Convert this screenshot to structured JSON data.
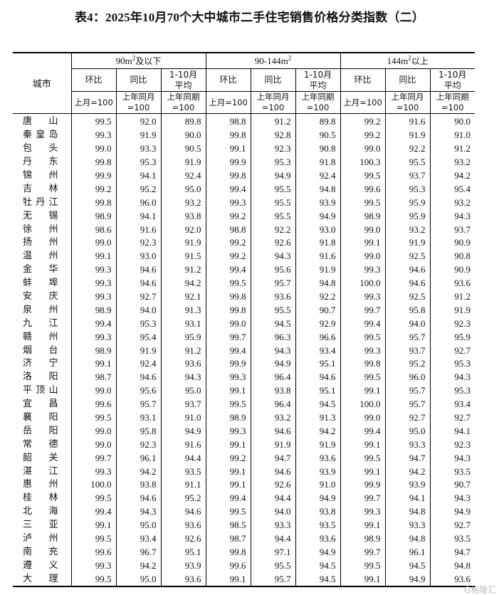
{
  "title": "表4：2025年10月70个大中城市二手住宅销售价格分类指数（二）",
  "header": {
    "city_label": "城市",
    "groups": [
      {
        "label": "90m",
        "sup": "2",
        "suffix": "及以下"
      },
      {
        "label": "90-144m",
        "sup": "2",
        "suffix": ""
      },
      {
        "label": "144m",
        "sup": "2",
        "suffix": "以上"
      }
    ],
    "sub": [
      "环比",
      "同比",
      "1-10月平均"
    ],
    "sub_line1": [
      "环比",
      "同比",
      "1-10月"
    ],
    "sub_line2": [
      "",
      "",
      "平均"
    ],
    "base_line1": [
      "上月=100",
      "上年同月",
      "上年同期"
    ],
    "base_line2": [
      "",
      "=100",
      "=100"
    ]
  },
  "rows": [
    {
      "city": [
        "唐",
        "山"
      ],
      "v": [
        "99.5",
        "92.0",
        "89.8",
        "98.8",
        "91.2",
        "89.8",
        "99.2",
        "91.6",
        "90.0"
      ]
    },
    {
      "city": [
        "秦",
        "皇",
        "岛"
      ],
      "v": [
        "99.3",
        "91.9",
        "90.0",
        "99.8",
        "92.8",
        "90.5",
        "99.2",
        "91.9",
        "91.0"
      ]
    },
    {
      "city": [
        "包",
        "头"
      ],
      "v": [
        "99.0",
        "93.3",
        "90.5",
        "99.1",
        "92.3",
        "90.8",
        "99.0",
        "92.2",
        "91.2"
      ]
    },
    {
      "city": [
        "丹",
        "东"
      ],
      "v": [
        "99.8",
        "95.3",
        "91.9",
        "99.9",
        "95.3",
        "91.8",
        "100.3",
        "95.5",
        "93.2"
      ]
    },
    {
      "city": [
        "锦",
        "州"
      ],
      "v": [
        "99.9",
        "94.1",
        "92.4",
        "99.8",
        "94.9",
        "92.4",
        "99.5",
        "93.7",
        "94.2"
      ]
    },
    {
      "city": [
        "吉",
        "林"
      ],
      "v": [
        "99.2",
        "95.2",
        "95.0",
        "99.4",
        "95.5",
        "94.8",
        "99.6",
        "95.3",
        "95.4"
      ]
    },
    {
      "city": [
        "牡",
        "丹",
        "江"
      ],
      "v": [
        "99.8",
        "96.0",
        "93.2",
        "99.3",
        "95.5",
        "93.9",
        "99.5",
        "95.9",
        "93.2"
      ]
    },
    {
      "city": [
        "无",
        "锡"
      ],
      "v": [
        "98.9",
        "94.1",
        "93.8",
        "99.2",
        "95.5",
        "94.9",
        "98.9",
        "95.9",
        "94.3"
      ]
    },
    {
      "city": [
        "徐",
        "州"
      ],
      "v": [
        "98.6",
        "91.6",
        "92.0",
        "98.8",
        "92.2",
        "93.0",
        "99.0",
        "93.2",
        "93.7"
      ]
    },
    {
      "city": [
        "扬",
        "州"
      ],
      "v": [
        "99.0",
        "92.3",
        "91.9",
        "99.2",
        "92.6",
        "91.8",
        "99.1",
        "91.9",
        "90.9"
      ]
    },
    {
      "city": [
        "温",
        "州"
      ],
      "v": [
        "99.1",
        "93.0",
        "91.5",
        "99.2",
        "94.3",
        "91.6",
        "99.0",
        "92.5",
        "90.8"
      ]
    },
    {
      "city": [
        "金",
        "华"
      ],
      "v": [
        "99.3",
        "94.6",
        "91.2",
        "99.4",
        "95.6",
        "91.9",
        "99.3",
        "94.6",
        "90.9"
      ]
    },
    {
      "city": [
        "蚌",
        "埠"
      ],
      "v": [
        "99.3",
        "94.6",
        "94.2",
        "99.5",
        "95.7",
        "94.8",
        "100.0",
        "94.6",
        "93.6"
      ]
    },
    {
      "city": [
        "安",
        "庆"
      ],
      "v": [
        "99.3",
        "92.7",
        "92.1",
        "99.8",
        "93.6",
        "92.2",
        "99.3",
        "92.5",
        "91.2"
      ]
    },
    {
      "city": [
        "泉",
        "州"
      ],
      "v": [
        "98.9",
        "94.0",
        "91.3",
        "99.8",
        "95.5",
        "90.7",
        "99.7",
        "95.8",
        "91.9"
      ]
    },
    {
      "city": [
        "九",
        "江"
      ],
      "v": [
        "99.4",
        "95.3",
        "93.1",
        "99.0",
        "94.5",
        "92.9",
        "99.4",
        "94.0",
        "92.3"
      ]
    },
    {
      "city": [
        "赣",
        "州"
      ],
      "v": [
        "99.3",
        "95.4",
        "95.9",
        "99.7",
        "96.3",
        "96.6",
        "99.5",
        "95.7",
        "95.9"
      ]
    },
    {
      "city": [
        "烟",
        "台"
      ],
      "v": [
        "98.9",
        "91.9",
        "91.2",
        "99.4",
        "94.3",
        "93.4",
        "99.3",
        "93.7",
        "92.7"
      ]
    },
    {
      "city": [
        "济",
        "宁"
      ],
      "v": [
        "99.1",
        "92.4",
        "93.6",
        "99.9",
        "94.9",
        "95.1",
        "99.8",
        "95.2",
        "95.3"
      ]
    },
    {
      "city": [
        "洛",
        "阳"
      ],
      "v": [
        "98.7",
        "94.6",
        "94.3",
        "99.3",
        "96.4",
        "94.6",
        "99.5",
        "96.0",
        "94.3"
      ]
    },
    {
      "city": [
        "平",
        "顶",
        "山"
      ],
      "v": [
        "99.0",
        "95.6",
        "95.0",
        "99.1",
        "93.8",
        "95.1",
        "99.1",
        "95.7",
        "95.3"
      ]
    },
    {
      "city": [
        "宜",
        "昌"
      ],
      "v": [
        "99.6",
        "95.7",
        "93.7",
        "99.5",
        "96.4",
        "94.5",
        "100.0",
        "95.7",
        "93.4"
      ]
    },
    {
      "city": [
        "襄",
        "阳"
      ],
      "v": [
        "99.5",
        "93.1",
        "91.0",
        "98.9",
        "93.2",
        "91.3",
        "99.0",
        "92.7",
        "92.7"
      ]
    },
    {
      "city": [
        "岳",
        "阳"
      ],
      "v": [
        "99.0",
        "95.8",
        "94.9",
        "99.3",
        "94.6",
        "94.2",
        "99.4",
        "95.0",
        "94.1"
      ]
    },
    {
      "city": [
        "常",
        "德"
      ],
      "v": [
        "99.0",
        "92.3",
        "91.6",
        "99.1",
        "91.9",
        "91.9",
        "99.1",
        "93.3",
        "92.3"
      ]
    },
    {
      "city": [
        "韶",
        "关"
      ],
      "v": [
        "99.7",
        "96.1",
        "94.4",
        "99.2",
        "94.7",
        "93.6",
        "99.5",
        "94.7",
        "94.3"
      ]
    },
    {
      "city": [
        "湛",
        "江"
      ],
      "v": [
        "99.3",
        "94.2",
        "93.5",
        "99.1",
        "94.6",
        "93.9",
        "99.1",
        "94.2",
        "93.5"
      ]
    },
    {
      "city": [
        "惠",
        "州"
      ],
      "v": [
        "100.0",
        "93.8",
        "91.1",
        "99.1",
        "92.6",
        "91.0",
        "99.9",
        "93.9",
        "90.7"
      ]
    },
    {
      "city": [
        "桂",
        "林"
      ],
      "v": [
        "99.5",
        "94.6",
        "95.2",
        "99.4",
        "94.4",
        "94.9",
        "99.7",
        "94.1",
        "94.3"
      ]
    },
    {
      "city": [
        "北",
        "海"
      ],
      "v": [
        "99.4",
        "94.3",
        "94.6",
        "99.5",
        "94.0",
        "93.8",
        "99.3",
        "94.8",
        "94.9"
      ]
    },
    {
      "city": [
        "三",
        "亚"
      ],
      "v": [
        "99.1",
        "95.0",
        "93.6",
        "98.5",
        "93.3",
        "93.5",
        "99.1",
        "93.3",
        "92.7"
      ]
    },
    {
      "city": [
        "泸",
        "州"
      ],
      "v": [
        "99.5",
        "93.4",
        "92.6",
        "98.7",
        "94.4",
        "93.6",
        "98.9",
        "94.8",
        "93.5"
      ]
    },
    {
      "city": [
        "南",
        "充"
      ],
      "v": [
        "99.6",
        "96.7",
        "95.1",
        "99.8",
        "97.1",
        "94.9",
        "99.7",
        "96.1",
        "94.7"
      ]
    },
    {
      "city": [
        "遵",
        "义"
      ],
      "v": [
        "99.3",
        "94.2",
        "93.9",
        "99.6",
        "95.5",
        "94.5",
        "99.5",
        "94.5",
        "94.8"
      ]
    },
    {
      "city": [
        "大",
        "理"
      ],
      "v": [
        "99.5",
        "95.0",
        "93.6",
        "99.1",
        "95.7",
        "94.5",
        "99.1",
        "94.9",
        "93.6"
      ]
    }
  ],
  "watermark": "格隆汇"
}
